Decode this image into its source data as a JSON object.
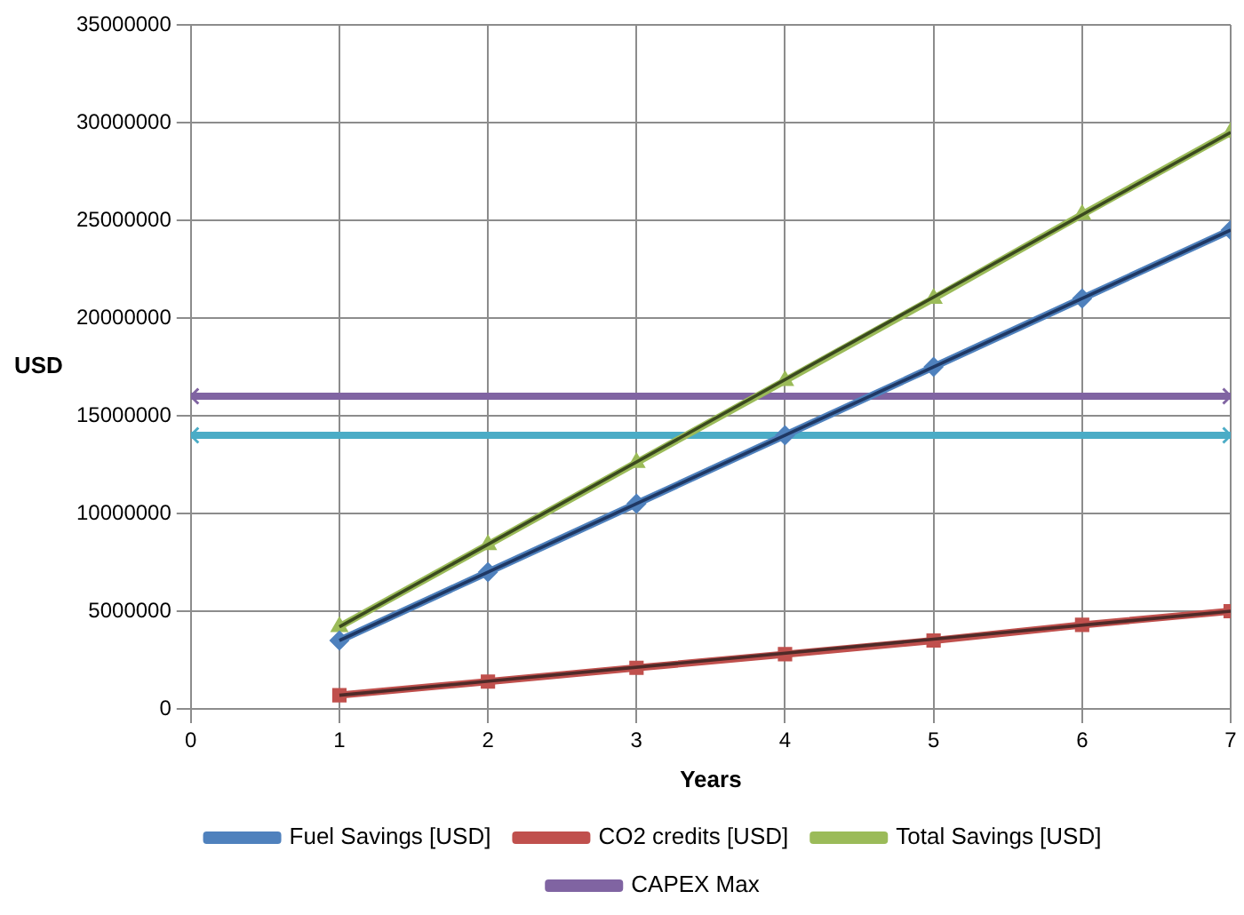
{
  "chart_data": {
    "type": "line",
    "xlabel": "Years",
    "ylabel": "USD",
    "xlim": [
      0,
      7
    ],
    "xticks": [
      0,
      1,
      2,
      3,
      4,
      5,
      6,
      7
    ],
    "ylim": [
      0,
      35000000
    ],
    "yticks": [
      0,
      5000000,
      10000000,
      15000000,
      20000000,
      25000000,
      30000000,
      35000000
    ],
    "grid": true,
    "legend": "bottom",
    "series": [
      {
        "name": "Fuel Savings [USD]",
        "color": "#4f81bd",
        "marker": "diamond",
        "x": [
          1,
          2,
          3,
          4,
          5,
          6,
          7
        ],
        "values": [
          3500000,
          7000000,
          10500000,
          14000000,
          17500000,
          21000000,
          24500000
        ]
      },
      {
        "name": "CO2 credits [USD]",
        "color": "#c0504d",
        "marker": "square",
        "x": [
          1,
          2,
          3,
          4,
          5,
          6,
          7
        ],
        "values": [
          700000,
          1400000,
          2100000,
          2800000,
          3500000,
          4300000,
          5000000
        ]
      },
      {
        "name": "Total Savings [USD]",
        "color": "#9bbb59",
        "marker": "triangle",
        "x": [
          1,
          2,
          3,
          4,
          5,
          6,
          7
        ],
        "values": [
          4200000,
          8400000,
          12600000,
          16800000,
          21000000,
          25300000,
          29500000
        ]
      },
      {
        "name": "CAPEX Max",
        "color": "#8064a2",
        "marker": "cross",
        "x": [
          0,
          7
        ],
        "values": [
          16000000,
          16000000
        ]
      },
      {
        "color": "#4bacc6",
        "marker": "cross",
        "x": [
          0,
          7
        ],
        "values": [
          14000000,
          14000000
        ]
      },
      {
        "type": "line",
        "color": "#1f3864",
        "marker": "none",
        "x": [
          1,
          7
        ],
        "values": [
          3500000,
          24500000
        ]
      },
      {
        "type": "line",
        "color": "#4f2a28",
        "marker": "none",
        "x": [
          1,
          7
        ],
        "values": [
          700000,
          5000000
        ]
      },
      {
        "type": "line",
        "color": "#3b4a1f",
        "marker": "none",
        "x": [
          1,
          7
        ],
        "values": [
          4200000,
          29500000
        ]
      }
    ]
  }
}
